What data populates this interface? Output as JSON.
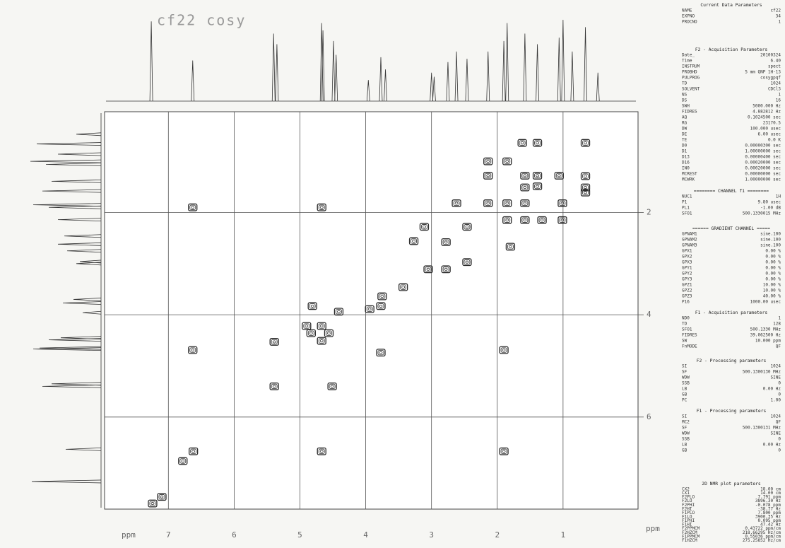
{
  "title": "cf22 cosy",
  "chart_data": {
    "type": "contour",
    "x_label": "ppm",
    "y_label": "ppm",
    "xlim": [
      7.97,
      -0.14
    ],
    "ylim": [
      0.03,
      7.8
    ],
    "xticks": [
      7,
      6,
      5,
      4,
      3,
      2,
      1
    ],
    "yticks": [
      2,
      4,
      6
    ],
    "grid": true,
    "color": "#2a2a2a",
    "cross_peaks": {
      "x": [
        6.63,
        4.67,
        6.63,
        5.39,
        4.67,
        4.81,
        4.41,
        3.94,
        3.77,
        3.77,
        5.39,
        4.51,
        4.9,
        4.83,
        4.56,
        4.67,
        1.9,
        6.62,
        4.67,
        1.9,
        7.1,
        7.24,
        6.78,
        1.62,
        1.39,
        0.66,
        2.14,
        1.85,
        1.58,
        1.39,
        1.06,
        0.66,
        2.14,
        1.58,
        1.39,
        0.66,
        0.66,
        2.62,
        2.14,
        1.85,
        1.58,
        1.01,
        1.85,
        1.58,
        1.32,
        1.01,
        1.8,
        2.78,
        3.27,
        2.78,
        2.46,
        3.05,
        3.11,
        2.46,
        3.43,
        3.75
      ],
      "y": [
        1.9,
        1.9,
        4.69,
        4.53,
        4.51,
        3.83,
        3.94,
        3.89,
        3.83,
        4.74,
        5.4,
        5.4,
        4.22,
        4.36,
        4.36,
        4.22,
        4.69,
        6.67,
        6.67,
        6.67,
        7.56,
        7.69,
        6.86,
        0.64,
        0.64,
        0.64,
        1.0,
        1.0,
        1.28,
        1.28,
        1.28,
        1.29,
        1.28,
        1.51,
        1.49,
        1.51,
        1.61,
        1.82,
        1.82,
        1.82,
        1.82,
        1.82,
        2.15,
        2.15,
        2.15,
        2.15,
        2.67,
        2.58,
        2.56,
        3.11,
        2.97,
        3.11,
        2.28,
        2.28,
        3.46,
        3.64
      ]
    },
    "projection": {
      "x": [
        7.26,
        6.63,
        5.4,
        5.35,
        4.67,
        4.65,
        4.49,
        4.45,
        3.96,
        3.77,
        3.7,
        3.0,
        2.96,
        2.75,
        2.62,
        2.46,
        2.14,
        1.9,
        1.85,
        1.58,
        1.39,
        1.06,
        1.0,
        0.86,
        0.66,
        0.47
      ],
      "values": [
        98,
        50,
        83,
        70,
        96,
        87,
        74,
        57,
        26,
        54,
        39,
        35,
        30,
        48,
        61,
        52,
        61,
        74,
        96,
        83,
        70,
        78,
        100,
        61,
        91,
        35
      ]
    }
  },
  "parameters": [
    {
      "title": "Current Data Parameters",
      "rows": [
        [
          "NAME",
          "cf22"
        ],
        [
          "EXPNO",
          "34"
        ],
        [
          "PROCNO",
          "1"
        ]
      ]
    },
    {
      "title": "F2 - Acquisition Parameters",
      "rows": [
        [
          "Date_",
          "20100324"
        ],
        [
          "Time",
          "6.40"
        ],
        [
          "INSTRUM",
          "spect"
        ],
        [
          "PROBHD",
          "5 mm QNP 1H-13"
        ],
        [
          "PULPROG",
          "cosygpqf"
        ],
        [
          "TD",
          "1024"
        ],
        [
          "SOLVENT",
          "CDCl3"
        ],
        [
          "NS",
          "1"
        ],
        [
          "DS",
          "16"
        ],
        [
          "SWH",
          "5000.000 Hz"
        ],
        [
          "FIDRES",
          "4.882812 Hz"
        ],
        [
          "AQ",
          "0.1024500 sec"
        ],
        [
          "RG",
          "23170.5"
        ],
        [
          "DW",
          "100.000 usec"
        ],
        [
          "DE",
          "6.00 usec"
        ],
        [
          "TE",
          "0.0 K"
        ],
        [
          "D0",
          "0.00000300 sec"
        ],
        [
          "D1",
          "1.00000000 sec"
        ],
        [
          "D13",
          "0.00000400 sec"
        ],
        [
          "D16",
          "0.00020000 sec"
        ],
        [
          "IN0",
          "0.00020000 sec"
        ],
        [
          "MCREST",
          "0.00000000 sec"
        ],
        [
          "MCWRK",
          "1.00000000 sec"
        ]
      ]
    },
    {
      "title": "======== CHANNEL f1 ========",
      "rows": [
        [
          "NUC1",
          "1H"
        ],
        [
          "P1",
          "9.80 usec"
        ],
        [
          "PL1",
          "-1.00 dB"
        ],
        [
          "SFO1",
          "500.1330015 MHz"
        ]
      ]
    },
    {
      "title": "====== GRADIENT CHANNEL =====",
      "rows": [
        [
          "GPNAM1",
          "sine.100"
        ],
        [
          "GPNAM2",
          "sine.100"
        ],
        [
          "GPNAM3",
          "sine.100"
        ],
        [
          "GPX1",
          "0.00 %"
        ],
        [
          "GPX2",
          "0.00 %"
        ],
        [
          "GPX3",
          "0.00 %"
        ],
        [
          "GPY1",
          "0.00 %"
        ],
        [
          "GPY2",
          "0.00 %"
        ],
        [
          "GPY3",
          "0.00 %"
        ],
        [
          "GPZ1",
          "10.00 %"
        ],
        [
          "GPZ2",
          "10.00 %"
        ],
        [
          "GPZ3",
          "40.00 %"
        ],
        [
          "P16",
          "1000.00 usec"
        ]
      ]
    },
    {
      "title": "F1 - Acquisition parameters",
      "rows": [
        [
          "ND0",
          "1"
        ],
        [
          "TD",
          "128"
        ],
        [
          "SFO1",
          "500.1330 MHz"
        ],
        [
          "FIDRES",
          "39.062500 Hz"
        ],
        [
          "SW",
          "10.000 ppm"
        ],
        [
          "FnMODE",
          "QF"
        ]
      ]
    },
    {
      "title": "F2 - Processing parameters",
      "rows": [
        [
          "SI",
          "1024"
        ],
        [
          "SF",
          "500.1300130 MHz"
        ],
        [
          "WDW",
          "SINE"
        ],
        [
          "SSB",
          "0"
        ],
        [
          "LB",
          "0.00 Hz"
        ],
        [
          "GB",
          "0"
        ],
        [
          "PC",
          "1.00"
        ]
      ]
    },
    {
      "title": "F1 - Processing parameters",
      "rows": [
        [
          "SI",
          "1024"
        ],
        [
          "MC2",
          "QF"
        ],
        [
          "SF",
          "500.1300131 MHz"
        ],
        [
          "WDW",
          "SINE"
        ],
        [
          "SSB",
          "0"
        ],
        [
          "LB",
          "0.00 Hz"
        ],
        [
          "GB",
          "0"
        ]
      ]
    },
    {
      "title": "2D NMR plot parameters",
      "rows": [
        [
          "CX2",
          "18.00 cm"
        ],
        [
          "CX1",
          "14.00 cm"
        ],
        [
          "F2PLO",
          "7.791 ppm"
        ],
        [
          "F2LO",
          "3896.30 Hz"
        ],
        [
          "F2PHI",
          "-0.078 ppm"
        ],
        [
          "F2HI",
          "-38.77 Hz"
        ],
        [
          "F1PLO",
          "7.800 ppm"
        ],
        [
          "F1LO",
          "3900.35 Hz"
        ],
        [
          "F1PHI",
          "0.095 ppm"
        ],
        [
          "F1HI",
          "47.42 Hz"
        ],
        [
          "F2PPMCM",
          "0.43722 ppm/cm"
        ],
        [
          "F2HZCM",
          "218.66295 Hz/cm"
        ],
        [
          "F1PPMCM",
          "0.55036 ppm/cm"
        ],
        [
          "F1HZCM",
          "275.25852 Hz/cm"
        ]
      ]
    }
  ]
}
